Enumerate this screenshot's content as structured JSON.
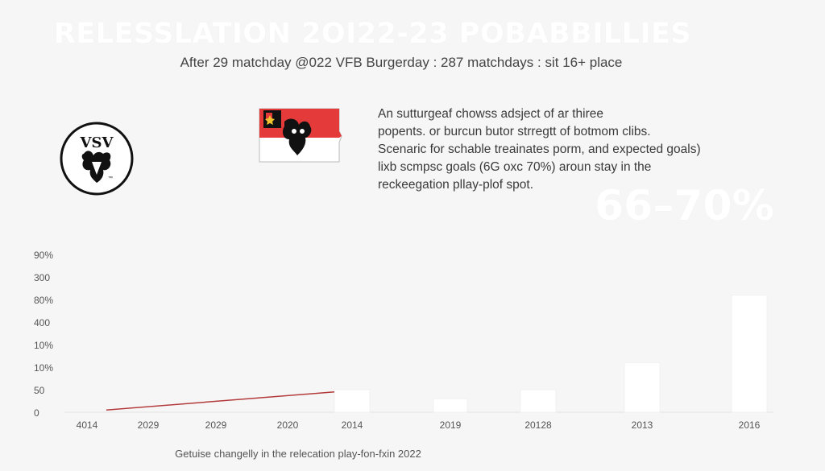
{
  "header": {
    "title": "RELESSLATION 2OI22-23 POBABBILLIES",
    "subtitle": "After 29 matchday @022 VFB Burgerday : 287 matchdays : sit 16+ place"
  },
  "logo": {
    "text": "VSV"
  },
  "description": {
    "lines": [
      "An sutturgeaf chowss adsject of ar thiree",
      "popents. or burcun butor strregtt of botmom clibs.",
      "Scenaric for schable treainates porm, and expected goals)",
      "lixb scmpsc goals (6G oxc 70%) aroun stay in the",
      "reckeegation pllay-plof spot."
    ]
  },
  "highlight": {
    "value": "66–70%"
  },
  "chart_data": {
    "type": "bar",
    "title": "",
    "xlabel": "",
    "ylabel": "",
    "y_tick_labels": [
      "0",
      "50",
      "10%",
      "10%",
      "400",
      "80%",
      "300",
      "90%"
    ],
    "ylim": [
      0,
      7
    ],
    "categories": [
      "4014",
      "2029",
      "2029",
      "2020",
      "2014",
      "2019",
      "20128",
      "2013",
      "2016"
    ],
    "series": [
      {
        "values": [
          0,
          0,
          0,
          0,
          1,
          0.6,
          1,
          2.2,
          5.2
        ]
      }
    ],
    "trend_line": {
      "from": [
        0,
        0.1
      ],
      "to": [
        4,
        0.9
      ],
      "color": "#b33a3a"
    },
    "bar_color": "#ffffff",
    "grid": false,
    "caption": "Getuise changelly in the relecation play-fon-fxin 2022"
  }
}
